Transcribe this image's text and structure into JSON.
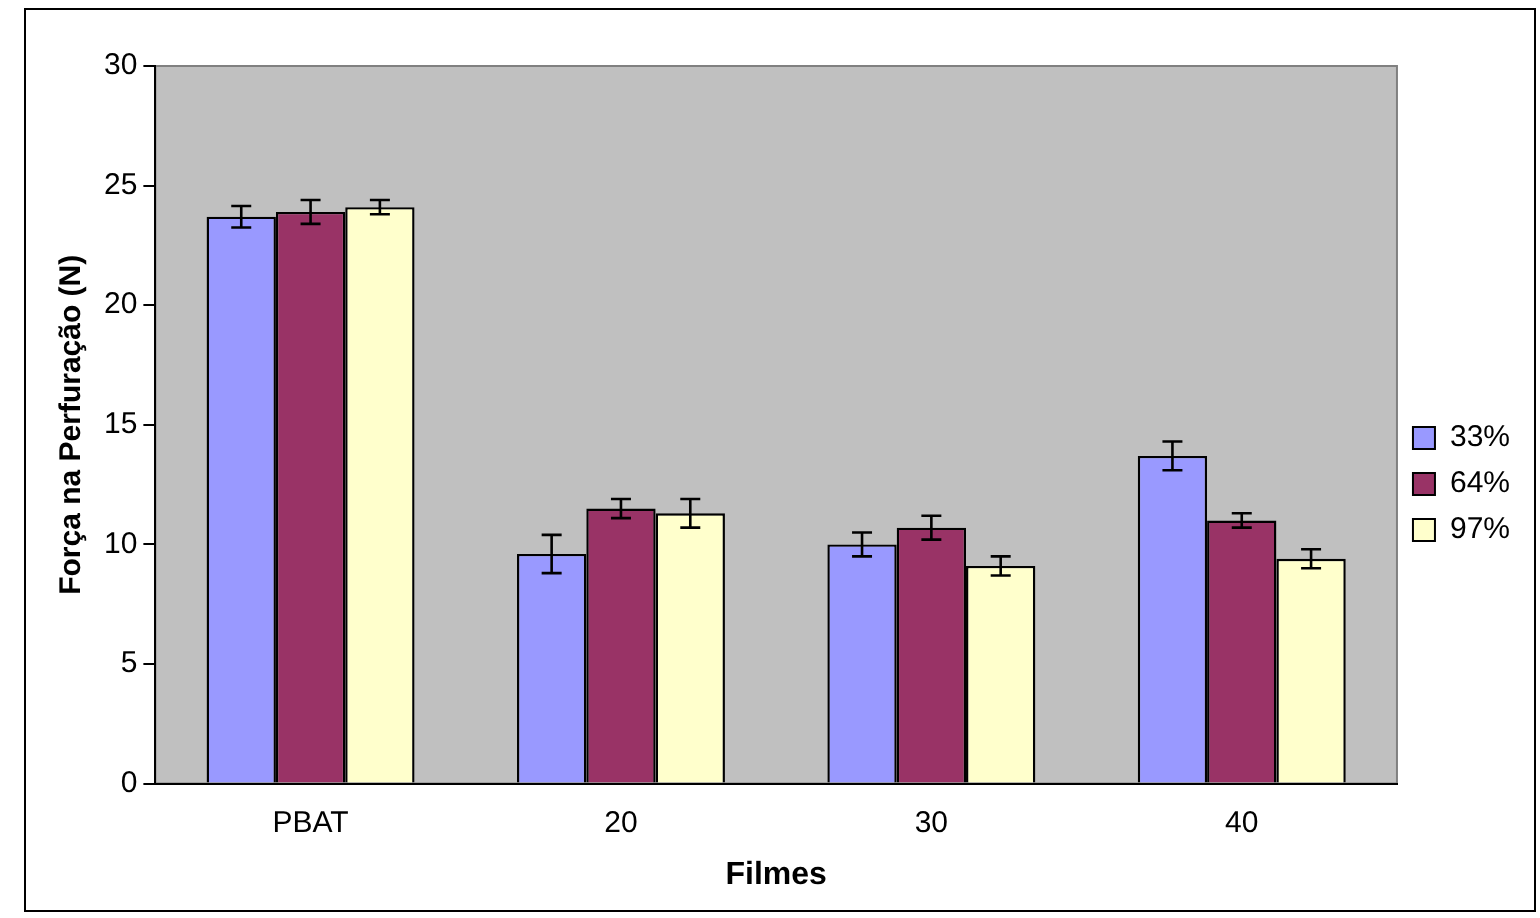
{
  "chart_data": {
    "type": "bar",
    "xlabel": "Filmes",
    "ylabel": "Força na Perfuração (N)",
    "categories": [
      "PBAT",
      "20",
      "30",
      "40"
    ],
    "series": [
      {
        "name": "33%",
        "color": "#9999ff",
        "values": [
          23.7,
          9.6,
          10.0,
          13.7
        ],
        "errors": [
          0.45,
          0.8,
          0.5,
          0.6
        ]
      },
      {
        "name": "64%",
        "color": "#993366",
        "values": [
          23.9,
          11.5,
          10.7,
          11.0
        ],
        "errors": [
          0.5,
          0.4,
          0.5,
          0.3
        ]
      },
      {
        "name": "97%",
        "color": "#ffffcc",
        "values": [
          24.1,
          11.3,
          9.1,
          9.4
        ],
        "errors": [
          0.3,
          0.6,
          0.4,
          0.4
        ]
      }
    ],
    "ylim": [
      0,
      30
    ],
    "yticks": [
      0,
      5,
      10,
      15,
      20,
      25,
      30
    ],
    "grid": false,
    "legend": "right"
  }
}
